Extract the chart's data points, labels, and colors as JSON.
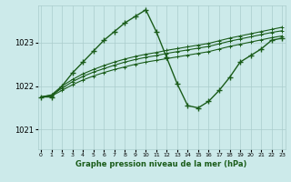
{
  "title": "Graphe pression niveau de la mer (hPa)",
  "background_color": "#cceaea",
  "line_color": "#1a5c1a",
  "grid_color": "#aacccc",
  "x_ticks": [
    0,
    1,
    2,
    3,
    4,
    5,
    6,
    7,
    8,
    9,
    10,
    11,
    12,
    13,
    14,
    15,
    16,
    17,
    18,
    19,
    20,
    21,
    22,
    23
  ],
  "y_ticks": [
    1021,
    1022,
    1023
  ],
  "ylim": [
    1020.55,
    1023.85
  ],
  "xlim": [
    -0.3,
    23.3
  ],
  "main_y": [
    1021.75,
    1021.75,
    1022.0,
    1022.3,
    1022.55,
    1022.8,
    1023.05,
    1023.25,
    1023.45,
    1023.6,
    1023.75,
    1023.25,
    1022.65,
    1022.05,
    1021.55,
    1021.5,
    1021.65,
    1021.9,
    1022.2,
    1022.55,
    1022.7,
    1022.85,
    1023.05,
    1023.1
  ],
  "smooth1": [
    1021.75,
    1021.8,
    1022.0,
    1022.15,
    1022.28,
    1022.38,
    1022.47,
    1022.55,
    1022.62,
    1022.68,
    1022.73,
    1022.77,
    1022.82,
    1022.86,
    1022.9,
    1022.94,
    1022.98,
    1023.04,
    1023.1,
    1023.15,
    1023.2,
    1023.25,
    1023.3,
    1023.35
  ],
  "smooth2": [
    1021.75,
    1021.79,
    1021.95,
    1022.1,
    1022.22,
    1022.32,
    1022.4,
    1022.48,
    1022.55,
    1022.61,
    1022.66,
    1022.7,
    1022.75,
    1022.79,
    1022.83,
    1022.87,
    1022.91,
    1022.97,
    1023.03,
    1023.08,
    1023.13,
    1023.18,
    1023.23,
    1023.27
  ],
  "smooth3": [
    1021.75,
    1021.77,
    1021.9,
    1022.03,
    1022.14,
    1022.23,
    1022.31,
    1022.38,
    1022.44,
    1022.5,
    1022.55,
    1022.59,
    1022.63,
    1022.67,
    1022.71,
    1022.75,
    1022.79,
    1022.85,
    1022.91,
    1022.96,
    1023.01,
    1023.06,
    1023.11,
    1023.15
  ]
}
